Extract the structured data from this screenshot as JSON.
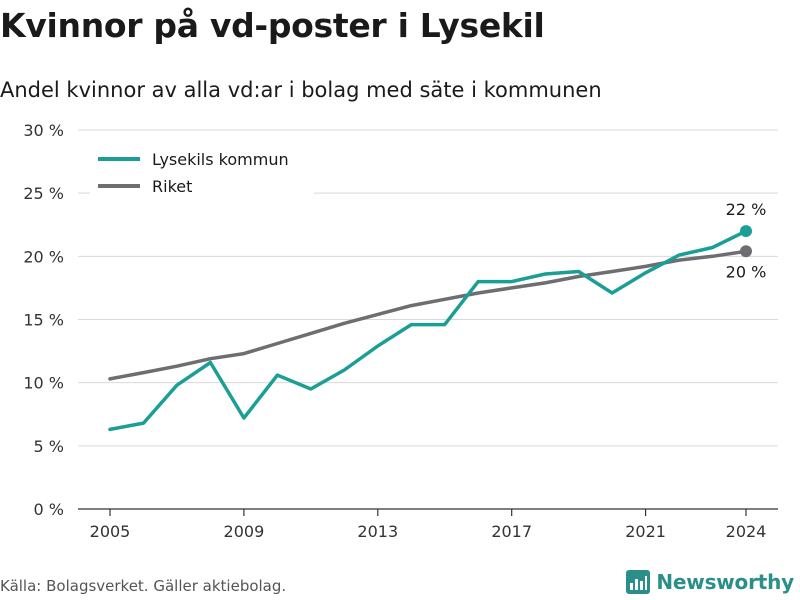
{
  "title": "Kvinnor på vd-poster i Lysekil",
  "subtitle": "Andel kvinnor av alla vd:ar i bolag med säte i kommunen",
  "source": "Källa: Bolagsverket. Gäller aktiebolag.",
  "brand": "Newsworthy",
  "chart_data": {
    "type": "line",
    "x": [
      2005,
      2006,
      2007,
      2008,
      2009,
      2010,
      2011,
      2012,
      2013,
      2014,
      2015,
      2016,
      2017,
      2018,
      2019,
      2020,
      2021,
      2022,
      2023,
      2024
    ],
    "series": [
      {
        "name": "Lysekils kommun",
        "color": "#1a9e96",
        "values": [
          6.3,
          6.8,
          9.8,
          11.6,
          7.2,
          10.6,
          9.5,
          11.0,
          12.9,
          14.6,
          14.6,
          18.0,
          18.0,
          18.6,
          18.8,
          17.1,
          18.7,
          20.1,
          20.7,
          22.0
        ],
        "end_label": "22 %"
      },
      {
        "name": "Riket",
        "color": "#6d6d72",
        "values": [
          10.3,
          10.8,
          11.3,
          11.9,
          12.3,
          13.1,
          13.9,
          14.7,
          15.4,
          16.1,
          16.6,
          17.1,
          17.5,
          17.9,
          18.4,
          18.8,
          19.2,
          19.7,
          20.0,
          20.4
        ],
        "end_label": "20 %"
      }
    ],
    "ylim": [
      0,
      30
    ],
    "yticks": [
      0,
      5,
      10,
      15,
      20,
      25,
      30
    ],
    "ytick_labels": [
      "0 %",
      "5 %",
      "10 %",
      "15 %",
      "20 %",
      "25 %",
      "30 %"
    ],
    "xticks": [
      2005,
      2009,
      2013,
      2017,
      2021,
      2024
    ],
    "xtick_labels": [
      "2005",
      "2009",
      "2013",
      "2017",
      "2021",
      "2024"
    ],
    "grid": true,
    "legend_position": "top-left"
  }
}
